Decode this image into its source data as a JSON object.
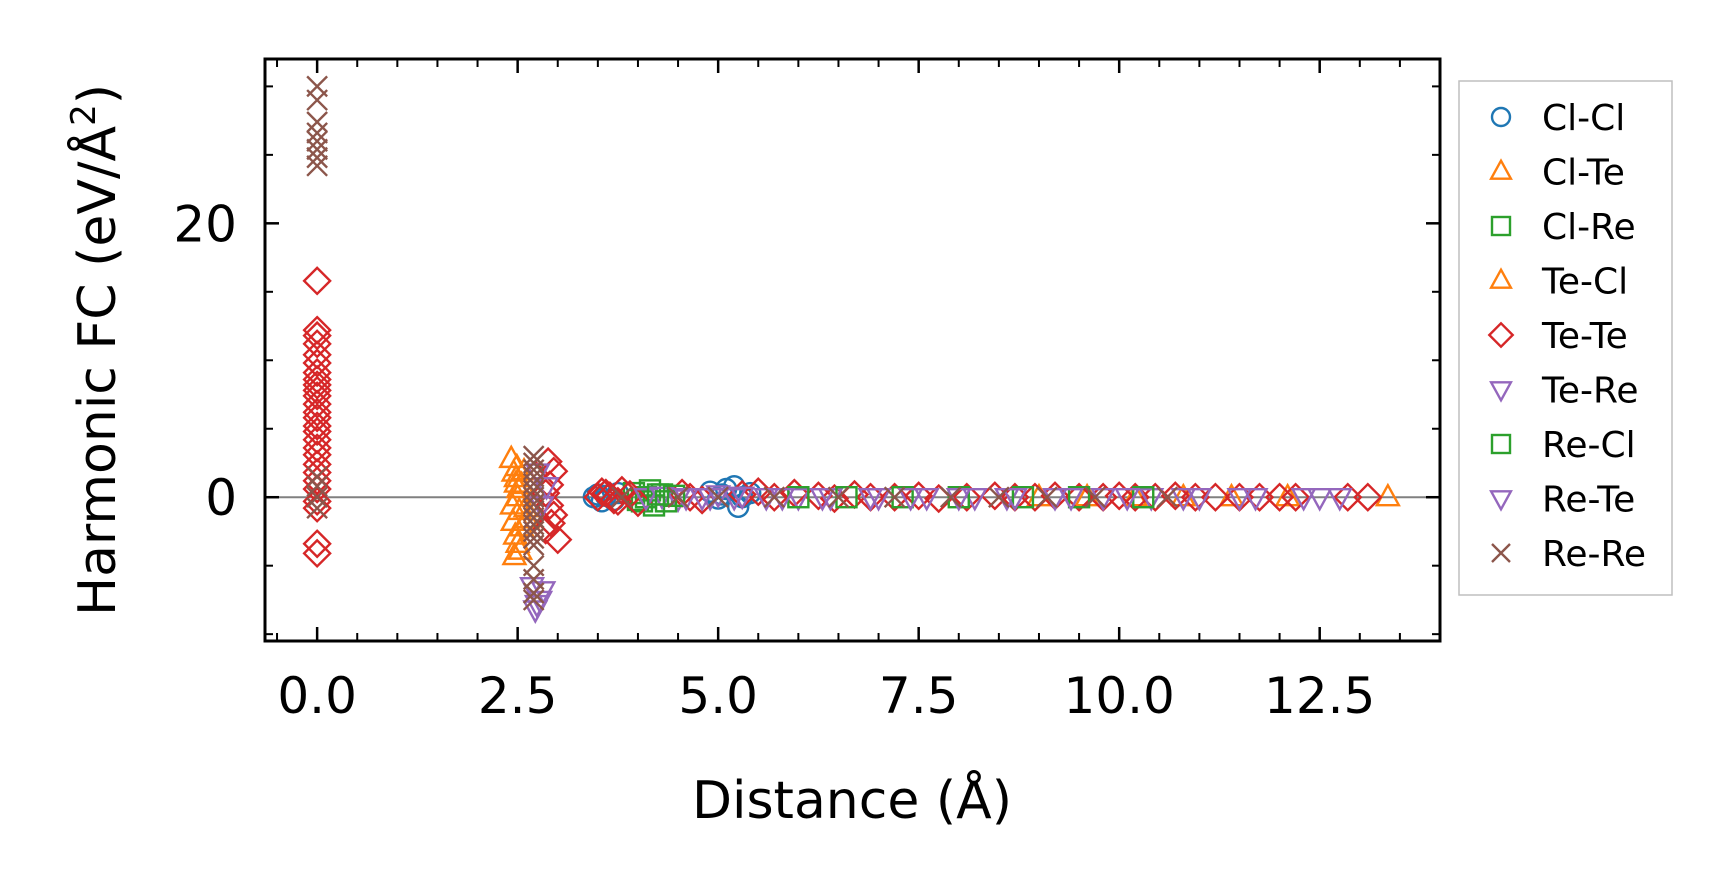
{
  "chart_data": {
    "type": "scatter",
    "title": "",
    "xlabel": "Distance (Å)",
    "ylabel_main": "Harmonic FC (eV/Å",
    "ylabel_sup": "2",
    "ylabel_end": ")",
    "xlim": [
      -0.65,
      14.0
    ],
    "ylim": [
      -10.5,
      32.0
    ],
    "xticks": [
      0.0,
      2.5,
      5.0,
      7.5,
      10.0,
      12.5
    ],
    "xtick_labels": [
      "0.0",
      "2.5",
      "5.0",
      "7.5",
      "10.0",
      "12.5"
    ],
    "yticks": [
      0,
      20
    ],
    "ytick_labels": [
      "0",
      "20"
    ],
    "x_minor_step": 0.5,
    "y_minor_step": 5,
    "zero_line": true,
    "legend_position": "outside-right",
    "series": [
      {
        "name": "Cl-Cl",
        "marker": "circle",
        "color": "#1f77b4",
        "x": [
          3.45,
          3.5,
          3.55,
          3.6,
          3.7,
          3.75,
          4.9,
          5.0,
          5.05,
          5.1,
          5.2,
          5.25,
          5.3,
          5.4
        ],
        "y": [
          0.0,
          0.2,
          -0.3,
          0.1,
          -0.2,
          0.3,
          0.4,
          -0.1,
          0.2,
          0.6,
          0.8,
          -0.7,
          0.0,
          0.3
        ]
      },
      {
        "name": "Cl-Te",
        "marker": "triangle-up",
        "color": "#ff7f0e",
        "x": [
          2.42,
          2.45,
          2.48,
          2.5,
          2.52,
          2.44,
          2.47,
          2.5,
          2.53,
          2.46,
          2.49,
          2.51,
          2.43,
          2.55,
          2.48,
          12.1,
          13.35
        ],
        "y": [
          2.8,
          1.8,
          1.0,
          0.0,
          -1.0,
          -1.8,
          -2.8,
          -3.4,
          -3.9,
          -4.3,
          2.2,
          0.6,
          -0.6,
          -2.2,
          1.4,
          0.0,
          0.0
        ]
      },
      {
        "name": "Cl-Re",
        "marker": "square",
        "color": "#2ca02c",
        "x": [
          3.95,
          4.05,
          4.15,
          4.2,
          4.1,
          4.3,
          4.0
        ],
        "y": [
          0.3,
          -0.3,
          0.5,
          -0.6,
          0.0,
          0.2,
          -0.2
        ]
      },
      {
        "name": "Te-Cl",
        "marker": "triangle-up",
        "color": "#ff7f0e",
        "x": [
          2.55,
          2.6,
          2.58,
          2.62,
          9.0,
          9.6,
          10.2,
          10.8,
          11.4
        ],
        "y": [
          0.9,
          -0.8,
          1.9,
          -1.6,
          0.0,
          0.0,
          0.0,
          0.0,
          0.0
        ]
      },
      {
        "name": "Te-Te",
        "marker": "diamond",
        "color": "#d62728",
        "x": [
          0.0,
          0.0,
          0.0,
          0.0,
          0.0,
          0.0,
          0.0,
          0.0,
          0.0,
          0.0,
          0.0,
          0.0,
          0.0,
          0.0,
          0.0,
          0.0,
          0.0,
          0.0,
          0.0,
          0.0,
          0.0,
          0.0,
          0.0,
          0.0,
          0.0,
          0.0,
          0.0,
          2.85,
          2.9,
          2.95,
          2.85,
          2.9,
          2.95,
          3.0,
          2.88,
          2.92,
          3.5,
          3.6,
          3.7,
          3.8,
          3.9,
          4.0,
          3.65,
          3.75,
          3.55,
          4.55,
          4.65,
          4.8,
          5.3,
          5.5,
          5.7,
          5.95,
          6.25,
          6.45,
          6.7,
          6.9,
          7.2,
          7.5,
          7.75,
          8.1,
          8.45,
          8.7,
          8.95,
          9.2,
          9.5,
          9.8,
          10.0,
          10.2,
          10.45,
          10.7,
          10.95,
          11.2,
          11.5,
          11.75,
          12.0,
          12.2,
          12.85,
          13.1
        ],
        "y": [
          15.8,
          12.2,
          11.8,
          11.2,
          10.4,
          9.8,
          9.1,
          8.6,
          8.2,
          7.8,
          7.4,
          6.8,
          6.2,
          5.8,
          5.2,
          4.8,
          4.2,
          3.6,
          3.1,
          2.4,
          1.8,
          1.2,
          0.6,
          -0.3,
          -0.8,
          -3.4,
          -4.1,
          0.3,
          -0.6,
          1.9,
          -2.4,
          0.9,
          -1.3,
          -3.1,
          2.6,
          -1.9,
          0.0,
          0.3,
          -0.2,
          0.5,
          0.2,
          -0.4,
          0.1,
          -0.3,
          0.4,
          0.3,
          0.0,
          -0.2,
          0.2,
          0.4,
          0.0,
          0.3,
          0.1,
          -0.1,
          0.2,
          0.0,
          0.0,
          0.1,
          -0.1,
          0.0,
          0.1,
          0.0,
          0.0,
          0.1,
          0.0,
          0.0,
          0.1,
          0.0,
          0.0,
          0.1,
          0.0,
          0.0,
          0.0,
          0.0,
          0.0,
          0.0,
          0.0,
          0.0
        ]
      },
      {
        "name": "Te-Re",
        "marker": "triangle-down",
        "color": "#9467bd",
        "x": [
          2.72,
          2.78,
          2.82,
          2.75,
          2.8,
          4.1,
          4.3,
          4.5,
          4.8,
          5.0,
          5.2,
          5.6,
          6.0,
          6.4,
          7.0,
          7.6,
          8.2,
          8.6,
          9.2,
          9.8,
          10.4,
          11.0,
          11.7,
          12.3,
          12.5,
          12.75
        ],
        "y": [
          -8.2,
          -7.5,
          -6.8,
          1.8,
          -0.6,
          0.0,
          0.1,
          -0.1,
          0.0,
          0.2,
          0.0,
          0.0,
          0.0,
          0.0,
          0.0,
          0.0,
          0.0,
          0.0,
          0.0,
          0.0,
          0.0,
          0.0,
          0.0,
          0.0,
          0.0,
          0.0
        ]
      },
      {
        "name": "Re-Cl",
        "marker": "square",
        "color": "#2ca02c",
        "x": [
          4.25,
          4.35,
          4.45,
          6.0,
          6.6,
          7.3,
          8.0,
          8.8,
          9.5,
          10.3
        ],
        "y": [
          0.2,
          -0.3,
          0.1,
          0.0,
          0.0,
          0.0,
          0.0,
          0.0,
          0.0,
          0.0
        ]
      },
      {
        "name": "Re-Te",
        "marker": "triangle-down",
        "color": "#9467bd",
        "x": [
          2.68,
          2.74,
          2.86,
          4.6,
          4.9,
          5.3,
          5.8,
          6.3,
          6.9,
          7.4,
          8.0,
          8.7,
          9.4,
          10.1,
          10.8,
          11.5
        ],
        "y": [
          -6.5,
          -7.8,
          0.8,
          0.0,
          0.0,
          0.1,
          0.0,
          0.0,
          0.0,
          0.0,
          0.0,
          0.0,
          0.0,
          0.0,
          0.0,
          0.0
        ]
      },
      {
        "name": "Re-Re",
        "marker": "x",
        "color": "#8c564b",
        "x": [
          0.0,
          0.0,
          0.0,
          0.0,
          0.0,
          0.0,
          0.0,
          0.0,
          0.0,
          0.0,
          0.0,
          0.0,
          2.7,
          2.7,
          2.7,
          2.7,
          2.7,
          2.7,
          2.7,
          2.7,
          2.7,
          2.7,
          2.7,
          2.7,
          2.7,
          2.7,
          2.7,
          2.7,
          2.7,
          2.7,
          3.8,
          4.5,
          5.0,
          5.7,
          6.5,
          7.2,
          7.9,
          8.5,
          9.1,
          9.7,
          10.6
        ],
        "y": [
          30.0,
          29.0,
          27.4,
          26.6,
          26.0,
          25.4,
          24.8,
          24.2,
          1.5,
          0.8,
          0.0,
          -0.8,
          3.0,
          2.5,
          2.0,
          1.5,
          1.0,
          0.5,
          0.0,
          -0.5,
          -1.0,
          -1.5,
          -2.0,
          -2.5,
          -3.0,
          -3.5,
          -5.0,
          -6.0,
          -7.0,
          -7.5,
          0.0,
          0.0,
          0.0,
          0.0,
          0.0,
          0.0,
          0.0,
          0.0,
          0.0,
          0.0,
          0.0
        ]
      }
    ]
  }
}
